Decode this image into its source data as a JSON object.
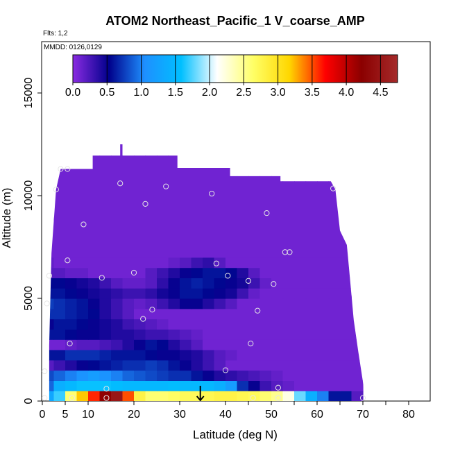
{
  "chart_data": {
    "type": "heatmap",
    "title": "ATOM2 Northeast_Pacific_1 V_coarse_AMP",
    "subtitle_flights": "Flts: 1,2",
    "subtitle_dates": "MMDD: 0126,0129",
    "xlabel": "Latitude (deg N)",
    "ylabel": "Altitude (m)",
    "xlim": [
      0,
      85
    ],
    "ylim": [
      0,
      17500
    ],
    "x_ticks": [
      0,
      5,
      10,
      20,
      30,
      40,
      50,
      60,
      70,
      80
    ],
    "x_tick_labels": [
      "0",
      "5",
      "10",
      "20",
      "30",
      "40",
      "50",
      "60",
      "70",
      "80"
    ],
    "y_ticks": [
      0,
      5000,
      10000,
      15000
    ],
    "y_tick_labels": [
      "0",
      "5000",
      "10000",
      "15000"
    ],
    "colorbar": {
      "range": [
        0,
        4.75
      ],
      "ticks": [
        0.0,
        0.5,
        1.0,
        1.5,
        2.0,
        2.5,
        3.0,
        3.5,
        4.0,
        4.5
      ],
      "tick_labels": [
        "0.0",
        "0.5",
        "1.0",
        "1.5",
        "2.0",
        "2.5",
        "3.0",
        "3.5",
        "4.0",
        "4.5"
      ],
      "colors": [
        "#8a2be2",
        "#00008b",
        "#1e90ff",
        "#00bfff",
        "#ffffff",
        "#ffff66",
        "#ffd700",
        "#ff0000",
        "#8b0000",
        "#a52a2a"
      ]
    },
    "grid": false,
    "arrow_marker_latitude": 34.5,
    "sample_points": [
      {
        "lat": 4,
        "alt": 11300
      },
      {
        "lat": 5.5,
        "alt": 11300
      },
      {
        "lat": 3,
        "alt": 10300
      },
      {
        "lat": 17,
        "alt": 10600
      },
      {
        "lat": 27,
        "alt": 10450
      },
      {
        "lat": 22.5,
        "alt": 9600
      },
      {
        "lat": 37,
        "alt": 10100
      },
      {
        "lat": 63.5,
        "alt": 10350
      },
      {
        "lat": 9,
        "alt": 8600
      },
      {
        "lat": 49,
        "alt": 9150
      },
      {
        "lat": 5.5,
        "alt": 6850
      },
      {
        "lat": 53,
        "alt": 7250
      },
      {
        "lat": 54,
        "alt": 7250
      },
      {
        "lat": 38,
        "alt": 6700
      },
      {
        "lat": 1.5,
        "alt": 6100
      },
      {
        "lat": 13,
        "alt": 6000
      },
      {
        "lat": 20,
        "alt": 6250
      },
      {
        "lat": 40.5,
        "alt": 6100
      },
      {
        "lat": 45,
        "alt": 5850
      },
      {
        "lat": 50.5,
        "alt": 5700
      },
      {
        "lat": 1,
        "alt": 4750
      },
      {
        "lat": 24,
        "alt": 4450
      },
      {
        "lat": 47,
        "alt": 4400
      },
      {
        "lat": 22,
        "alt": 4000
      },
      {
        "lat": 6,
        "alt": 2800
      },
      {
        "lat": 45.5,
        "alt": 2800
      },
      {
        "lat": 40,
        "alt": 1500
      },
      {
        "lat": 0.5,
        "alt": 1450
      },
      {
        "lat": 14,
        "alt": 600
      },
      {
        "lat": 51.5,
        "alt": 650
      },
      {
        "lat": 0.5,
        "alt": 150
      },
      {
        "lat": 6.5,
        "alt": 150
      },
      {
        "lat": 14,
        "alt": 150
      },
      {
        "lat": 46,
        "alt": 150
      },
      {
        "lat": 51.5,
        "alt": 150
      },
      {
        "lat": 70,
        "alt": 150
      }
    ],
    "ceiling": [
      [
        1.5,
        2700
      ],
      [
        2,
        7200
      ],
      [
        3,
        10300
      ],
      [
        4,
        11300
      ],
      [
        11,
        11300
      ],
      [
        11,
        11950
      ],
      [
        17,
        11950
      ],
      [
        17,
        12500
      ],
      [
        17.5,
        12500
      ],
      [
        17.5,
        11950
      ],
      [
        29.5,
        11950
      ],
      [
        29.5,
        11350
      ],
      [
        41,
        11350
      ],
      [
        41,
        10950
      ],
      [
        52,
        10950
      ],
      [
        52,
        10700
      ],
      [
        63,
        10700
      ],
      [
        64,
        10300
      ],
      [
        65,
        8300
      ],
      [
        66.5,
        7600
      ],
      [
        67,
        6400
      ],
      [
        68,
        3950
      ],
      [
        69,
        2400
      ],
      [
        70,
        950
      ],
      [
        70.5,
        0
      ]
    ],
    "bands": [
      {
        "alt": [
          0,
          500
        ],
        "values": [
          1.3,
          1.7,
          2.6,
          3.2,
          3.6,
          4.2,
          4.5,
          3.5,
          2.8,
          2.6,
          2.6,
          2.65,
          2.7,
          2.7,
          2.75,
          2.8,
          2.8,
          2.75,
          2.7,
          2.6,
          2.5,
          2.2,
          1.8,
          1.4,
          1.0,
          0.6,
          0.6,
          0.2
        ]
      },
      {
        "alt": [
          500,
          1000
        ],
        "values": [
          0.9,
          1.4,
          1.5,
          1.6,
          1.6,
          1.6,
          1.55,
          1.5,
          1.5,
          1.5,
          1.5,
          1.55,
          1.5,
          1.5,
          1.5,
          1.4,
          1.2,
          0.7,
          0.5,
          0.3,
          0.2,
          0.15,
          0.1,
          0.1,
          0.1,
          0.1,
          0.1,
          0.1
        ]
      },
      {
        "alt": [
          1000,
          1500
        ],
        "values": [
          0.8,
          0.9,
          1.0,
          1.1,
          1.2,
          1.1,
          1.0,
          0.9,
          0.85,
          0.8,
          0.75,
          0.7,
          0.7,
          0.6,
          0.5,
          0.4,
          0.35,
          0.3,
          0.25,
          0.2,
          0.15,
          0.1,
          0.1,
          0.1,
          0.1,
          0.1,
          0.1,
          0.1
        ]
      },
      {
        "alt": [
          1500,
          2000
        ],
        "values": [
          0.2,
          0.3,
          0.4,
          0.5,
          0.55,
          0.6,
          0.65,
          0.7,
          0.7,
          0.75,
          0.7,
          0.6,
          0.5,
          0.4,
          0.3,
          0.2,
          0.1,
          0.1,
          0.1,
          0.1,
          0.1,
          0.1,
          0.1,
          0.1,
          0.1,
          0.1,
          0.1,
          0.1
        ]
      },
      {
        "alt": [
          2000,
          2500
        ],
        "values": [
          0.6,
          0.6,
          0.7,
          0.7,
          0.7,
          0.65,
          0.6,
          0.6,
          0.6,
          0.55,
          0.5,
          0.5,
          0.45,
          0.4,
          0.3,
          0.2,
          0.15,
          0.1,
          0.1,
          0.1,
          0.1,
          0.1,
          0.1,
          0.1,
          0.1,
          0.1,
          0.1,
          0.1
        ]
      },
      {
        "alt": [
          2500,
          3000
        ],
        "values": [
          0.1,
          0.1,
          0.15,
          0.2,
          0.2,
          0.25,
          0.3,
          0.4,
          0.5,
          0.6,
          0.55,
          0.4,
          0.3,
          0.2,
          0.1,
          0.1,
          0.1,
          0.1,
          0.1,
          0.1,
          0.1,
          0.1,
          0.1,
          0.1,
          0.1,
          0.1,
          0.1,
          0.1
        ]
      },
      {
        "alt": [
          3000,
          3500
        ],
        "values": [
          0.6,
          0.6,
          0.55,
          0.5,
          0.5,
          0.45,
          0.4,
          0.4,
          0.35,
          0.3,
          0.3,
          0.25,
          0.2,
          0.15,
          0.1,
          0.1,
          0.1,
          0.1,
          0.1,
          0.1,
          0.1,
          0.1,
          0.1,
          0.1,
          0.1,
          0.1,
          0.1,
          0.1
        ]
      },
      {
        "alt": [
          3500,
          4000
        ],
        "values": [
          0.5,
          0.6,
          0.6,
          0.55,
          0.5,
          0.45,
          0.4,
          0.3,
          0.25,
          0.2,
          0.15,
          0.1,
          0.1,
          0.1,
          0.1,
          0.1,
          0.1,
          0.1,
          0.1,
          0.1,
          0.1,
          0.1,
          0.1,
          0.1,
          0.1,
          0.1,
          0.1,
          0.1
        ]
      },
      {
        "alt": [
          4000,
          4500
        ],
        "values": [
          0.7,
          0.7,
          0.65,
          0.6,
          0.55,
          0.4,
          0.3,
          0.2,
          0.1,
          0.1,
          0.1,
          0.1,
          0.1,
          0.1,
          0.1,
          0.1,
          0.1,
          0.1,
          0.1,
          0.1,
          0.1,
          0.1,
          0.1,
          0.1,
          0.1,
          0.1,
          0.1,
          0.1
        ]
      },
      {
        "alt": [
          4500,
          5000
        ],
        "values": [
          0.75,
          0.7,
          0.65,
          0.6,
          0.5,
          0.4,
          0.3,
          0.2,
          0.15,
          0.2,
          0.3,
          0.4,
          0.5,
          0.5,
          0.4,
          0.3,
          0.2,
          0.1,
          0.1,
          0.1,
          0.1,
          0.1,
          0.1,
          0.1,
          0.1,
          0.1,
          0.1,
          0.1
        ]
      },
      {
        "alt": [
          5000,
          5500
        ],
        "values": [
          0.6,
          0.6,
          0.55,
          0.5,
          0.45,
          0.4,
          0.35,
          0.3,
          0.3,
          0.35,
          0.45,
          0.5,
          0.6,
          0.6,
          0.55,
          0.5,
          0.45,
          0.3,
          0.15,
          0.1,
          0.1,
          0.1,
          0.1,
          0.1,
          0.1,
          0.1,
          0.1,
          0.1
        ]
      },
      {
        "alt": [
          5500,
          6000
        ],
        "values": [
          0.55,
          0.55,
          0.5,
          0.45,
          0.4,
          0.3,
          0.2,
          0.15,
          0.15,
          0.2,
          0.35,
          0.5,
          0.6,
          0.65,
          0.6,
          0.55,
          0.5,
          0.45,
          0.3,
          0.15,
          0.1,
          0.1,
          0.1,
          0.1,
          0.1,
          0.1,
          0.1,
          0.1
        ]
      },
      {
        "alt": [
          6000,
          6500
        ],
        "values": [
          0.2,
          0.2,
          0.15,
          0.15,
          0.1,
          0.1,
          0.1,
          0.1,
          0.1,
          0.2,
          0.3,
          0.4,
          0.5,
          0.55,
          0.6,
          0.6,
          0.55,
          0.4,
          0.2,
          0.1,
          0.1,
          0.1,
          0.1,
          0.1,
          0.1,
          0.1,
          0.1,
          0.1
        ]
      },
      {
        "alt": [
          6500,
          7000
        ],
        "values": [
          0.15,
          0.1,
          0.1,
          0.1,
          0.1,
          0.1,
          0.1,
          0.1,
          0.1,
          0.1,
          0.1,
          0.15,
          0.2,
          0.3,
          0.35,
          0.2,
          0.1,
          0.1,
          0.1,
          0.1,
          0.1,
          0.1,
          0.1,
          0.1,
          0.1,
          0.1,
          0.1,
          0.1
        ]
      },
      {
        "alt": [
          7000,
          17500
        ],
        "values": [
          0.1,
          0.1,
          0.1,
          0.1,
          0.1,
          0.1,
          0.1,
          0.1,
          0.1,
          0.1,
          0.1,
          0.1,
          0.1,
          0.1,
          0.1,
          0.1,
          0.1,
          0.1,
          0.1,
          0.1,
          0.1,
          0.1,
          0.1,
          0.1,
          0.1,
          0.1,
          0.1,
          0.1
        ]
      }
    ],
    "band_latitude_step": 2.5
  }
}
